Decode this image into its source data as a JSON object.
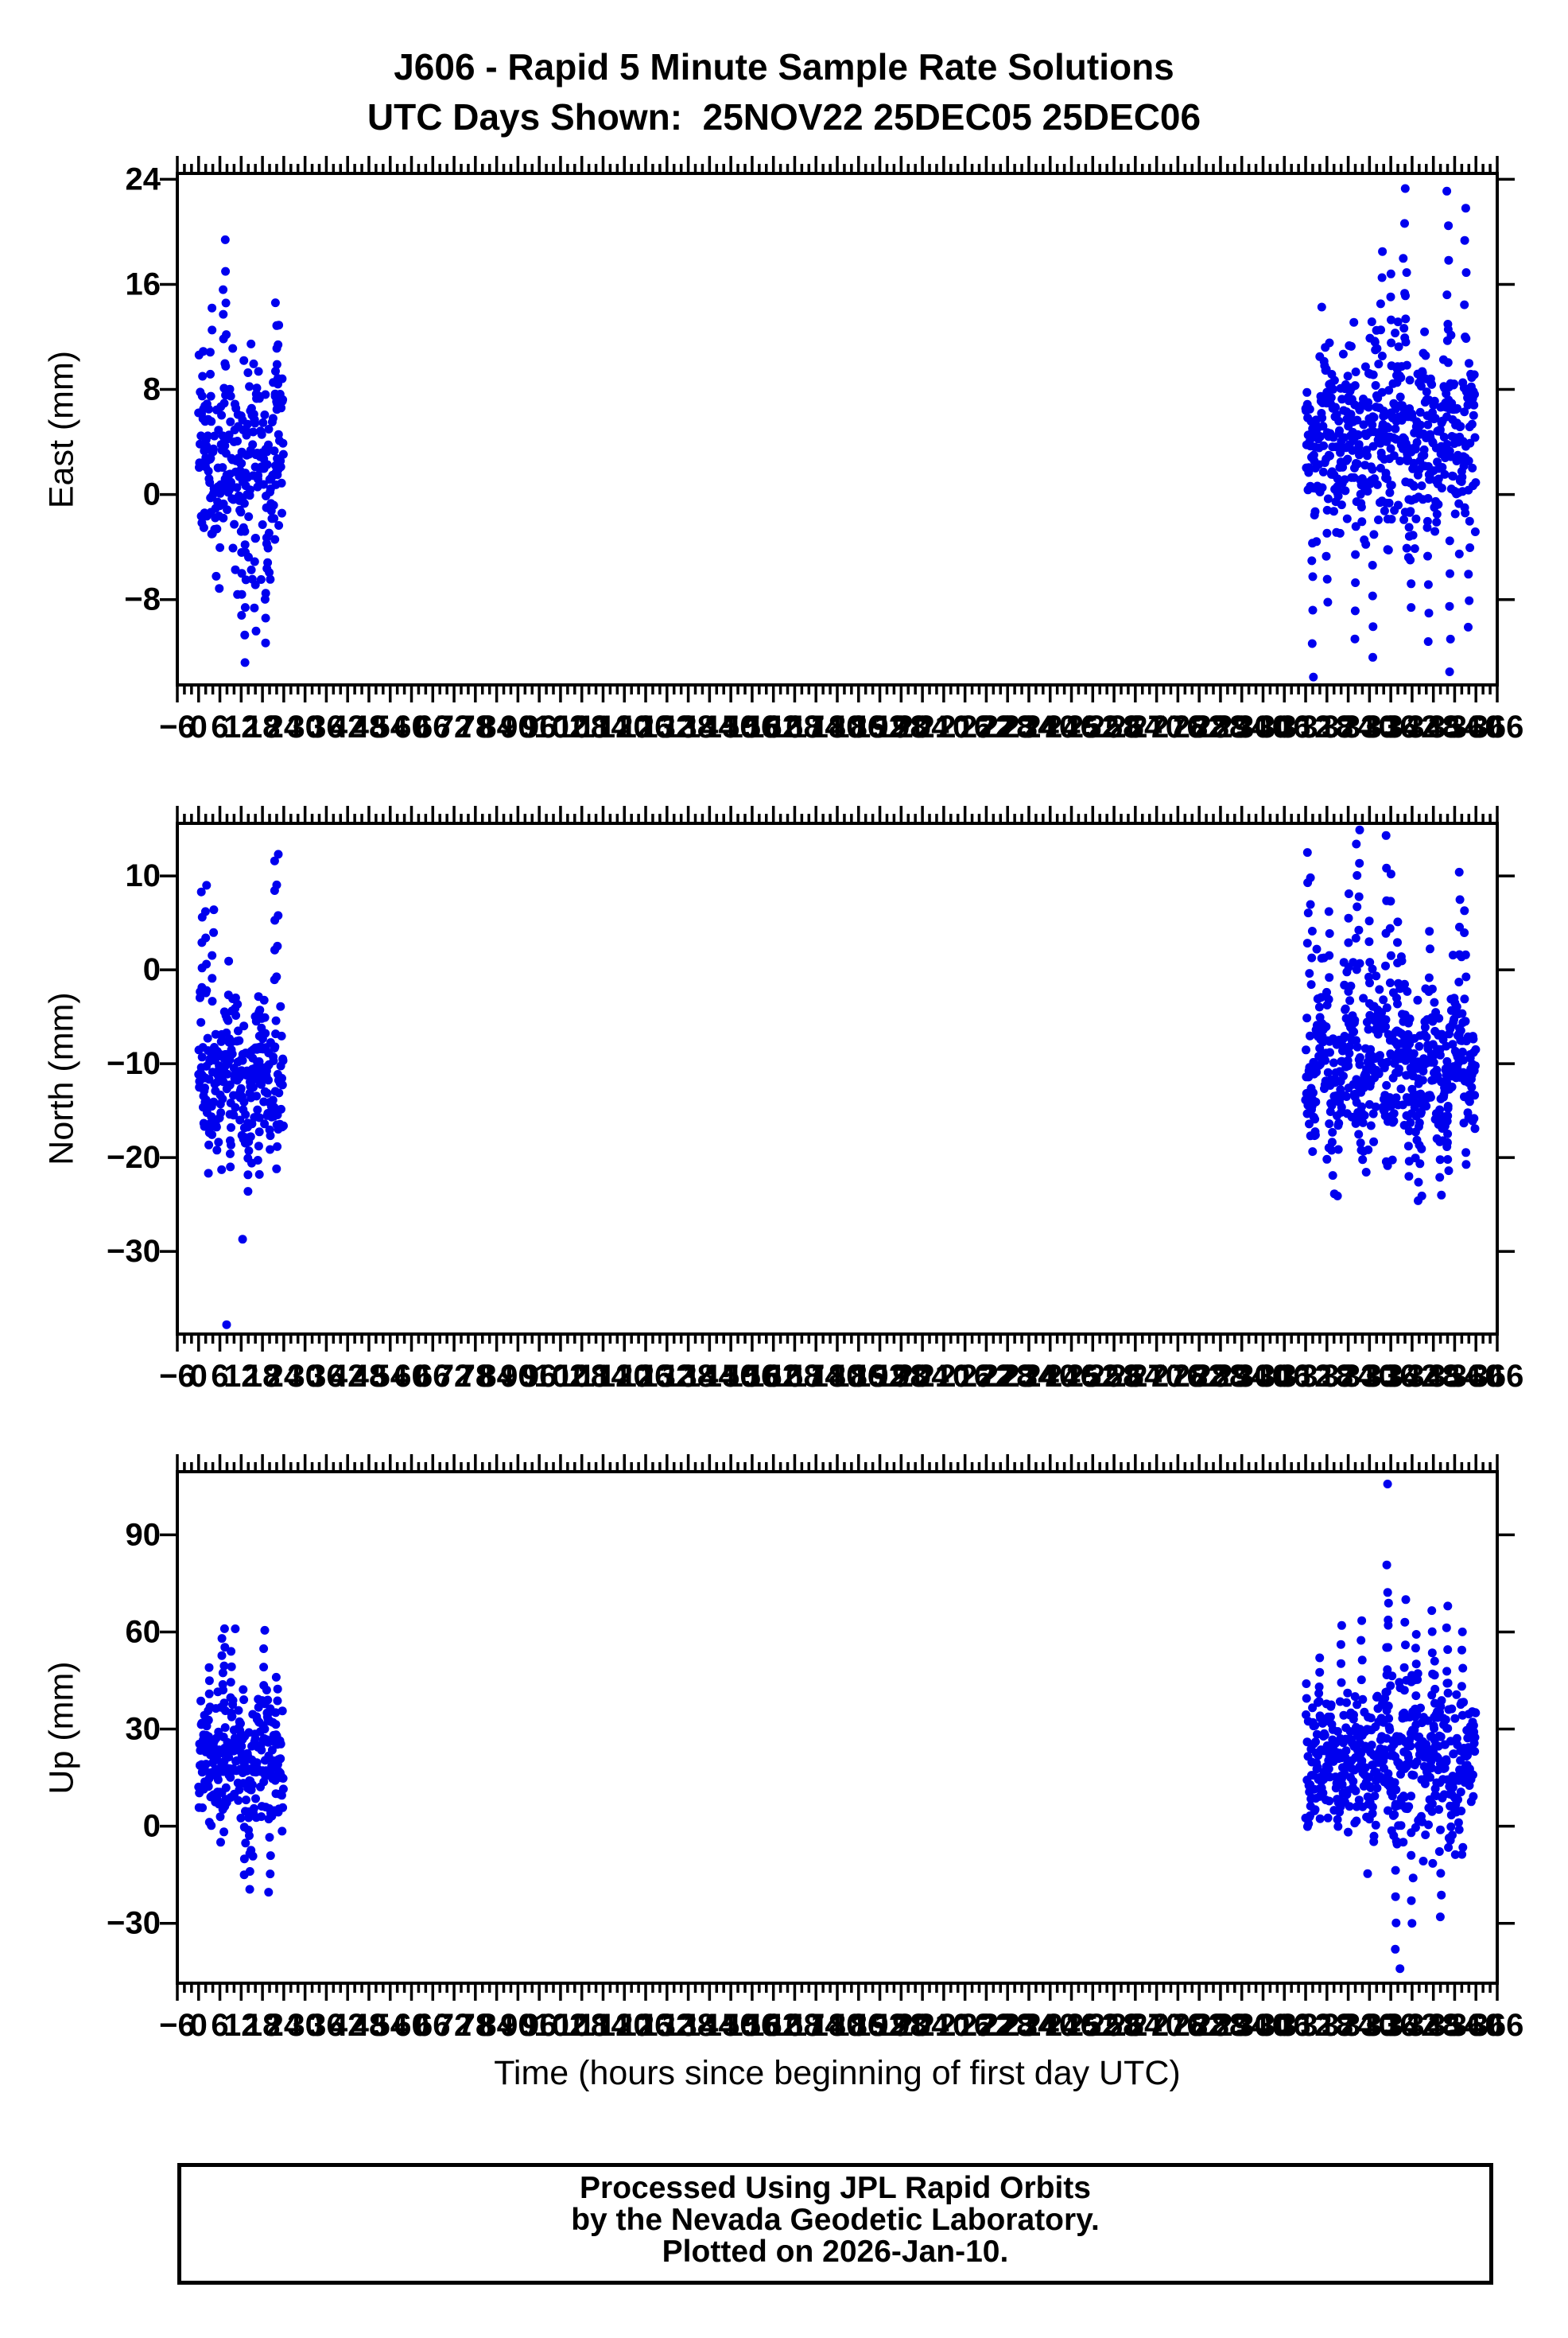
{
  "header": {
    "title": "J606 - Rapid 5 Minute Sample Rate Solutions",
    "subtitle": "UTC Days Shown:  25NOV22 25DEC05 25DEC06"
  },
  "station": "J606",
  "utc_days_shown": [
    "25NOV22",
    "25DEC05",
    "25DEC06"
  ],
  "footer": {
    "lines": [
      "Processed Using JPL Rapid Orbits",
      "by the Nevada Geodetic Laboratory.",
      "Plotted on 2026-Jan-10."
    ]
  },
  "marker": {
    "color": "#0000ee",
    "radius": 5.5
  },
  "axis_color": "#000000",
  "chart_data": {
    "type": "scatter",
    "title": "J606 - Rapid 5 Minute Sample Rate Solutions",
    "subtitle": "UTC Days Shown:  25NOV22 25DEC05 25DEC06",
    "xlabel": "Time (hours since beginning of first day UTC)",
    "x": {
      "min": -6,
      "max": 366,
      "major_tick_step": 6,
      "minor_tick_step": 2,
      "unit": "hours",
      "sample_minutes": 5
    },
    "subplots": [
      {
        "name": "East",
        "ylabel": "East (mm)",
        "yticks": [
          24,
          16,
          8,
          0,
          -8
        ],
        "ylim": [
          -14.5,
          24.45
        ],
        "clusters": [
          {
            "hours": [
              0,
              24
            ],
            "n": 260,
            "mean": 2.2,
            "sd": 3.9,
            "min": -13.2,
            "max": 19.5,
            "wave_amp": 2.2,
            "wave_period": 7.5,
            "wave_phase": 0.8,
            "spikes": [
              [
                3.5,
                14.2
              ],
              [
                7.2,
                15.6
              ],
              [
                7.6,
                19.4
              ],
              [
                12,
                -9.2
              ],
              [
                13.1,
                -12.8
              ],
              [
                16,
                -10.4
              ],
              [
                19,
                -11.3
              ],
              [
                21.8,
                14.6
              ],
              [
                22.4,
                12.9
              ]
            ]
          },
          {
            "hours": [
              312,
              360
            ],
            "n": 520,
            "mean": 4.3,
            "sd": 3.6,
            "min": -14,
            "max": 23.4,
            "wave_amp": 2.4,
            "wave_period": 6.8,
            "wave_phase": 2.4,
            "spikes": [
              [
                314,
                -13.9
              ],
              [
                318,
                -8.2
              ],
              [
                326,
                -11
              ],
              [
                331,
                -12.4
              ],
              [
                333.4,
                18.5
              ],
              [
                336,
                16.8
              ],
              [
                339.8,
                23.3
              ],
              [
                340.3,
                16.9
              ],
              [
                341.5,
                -8.6
              ],
              [
                346.5,
                -11.2
              ],
              [
                352,
                23.1
              ],
              [
                352.6,
                -13.5
              ],
              [
                357,
                21.8
              ],
              [
                358,
                -10.1
              ]
            ]
          }
        ],
        "outliers": []
      },
      {
        "name": "North",
        "ylabel": "North (mm)",
        "yticks": [
          10,
          0,
          -10,
          -20,
          -30
        ],
        "ylim": [
          -38.8,
          15.6
        ],
        "clusters": [
          {
            "hours": [
              0,
              24
            ],
            "n": 260,
            "mean": -11,
            "sd": 4.3,
            "min": -24,
            "max": 12.4,
            "wave_amp": 2.6,
            "wave_period": 8.5,
            "wave_phase": 1.2,
            "spikes": [
              [
                0.8,
                8.3
              ],
              [
                2,
                9
              ],
              [
                4,
                6.4
              ],
              [
                9,
                -21
              ],
              [
                14,
                -23.6
              ],
              [
                17,
                -21.8
              ],
              [
                21.6,
                11.6
              ],
              [
                22.2,
                12.3
              ]
            ]
          },
          {
            "hours": [
              312,
              360
            ],
            "n": 520,
            "mean": -10.5,
            "sd": 4.6,
            "min": -25,
            "max": 14.9,
            "wave_amp": 3,
            "wave_period": 7.6,
            "wave_phase": 4.0,
            "spikes": [
              [
                312.8,
                12.5
              ],
              [
                313.6,
                9.8
              ],
              [
                318.5,
                6.2
              ],
              [
                324,
                8.1
              ],
              [
                326.3,
                13.4
              ],
              [
                327,
                14.9
              ],
              [
                330,
                5.2
              ],
              [
                334.8,
                14.3
              ],
              [
                336,
                10.2
              ],
              [
                338,
                5.1
              ],
              [
                341,
                -22
              ],
              [
                344,
                -24.6
              ],
              [
                350,
                -24
              ],
              [
                352,
                -20.2
              ],
              [
                355.2,
                10.4
              ],
              [
                357,
                6.3
              ]
            ]
          }
        ],
        "outliers": [
          [
            12.4,
            -28.7
          ],
          [
            7.9,
            -37.8
          ]
        ]
      },
      {
        "name": "Up",
        "ylabel": "Up (mm)",
        "yticks": [
          90,
          60,
          30,
          0,
          -30
        ],
        "ylim": [
          -48.5,
          109.5
        ],
        "clusters": [
          {
            "hours": [
              0,
              24
            ],
            "n": 260,
            "mean": 20,
            "sd": 11,
            "min": -21,
            "max": 61,
            "wave_amp": 4,
            "wave_period": 9,
            "wave_phase": 0.5,
            "spikes": [
              [
                3,
                49
              ],
              [
                6.6,
                58
              ],
              [
                7.1,
                61
              ],
              [
                9,
                54
              ],
              [
                13,
                -15
              ],
              [
                14.2,
                -19.5
              ],
              [
                18.4,
                60.5
              ],
              [
                20,
                -20.4
              ],
              [
                22,
                46
              ]
            ]
          },
          {
            "hours": [
              312,
              360
            ],
            "n": 520,
            "mean": 20,
            "sd": 12,
            "min": -33,
            "max": 85,
            "wave_amp": 5,
            "wave_period": 8,
            "wave_phase": 3.1,
            "spikes": [
              [
                316,
                52
              ],
              [
                322,
                62
              ],
              [
                327.9,
                63.5
              ],
              [
                335.0,
                80.7
              ],
              [
                335.2,
                68.9
              ],
              [
                340,
                70
              ],
              [
                343,
                55
              ],
              [
                347.5,
                66.6
              ],
              [
                348.2,
                51
              ],
              [
                352,
                68
              ],
              [
                356,
                60
              ],
              [
                337.5,
                -38
              ],
              [
                342,
                -30
              ],
              [
                350,
                -28
              ]
            ]
          }
        ],
        "outliers": [
          [
            335.1,
            105.7
          ],
          [
            338.6,
            -44
          ]
        ]
      }
    ]
  }
}
